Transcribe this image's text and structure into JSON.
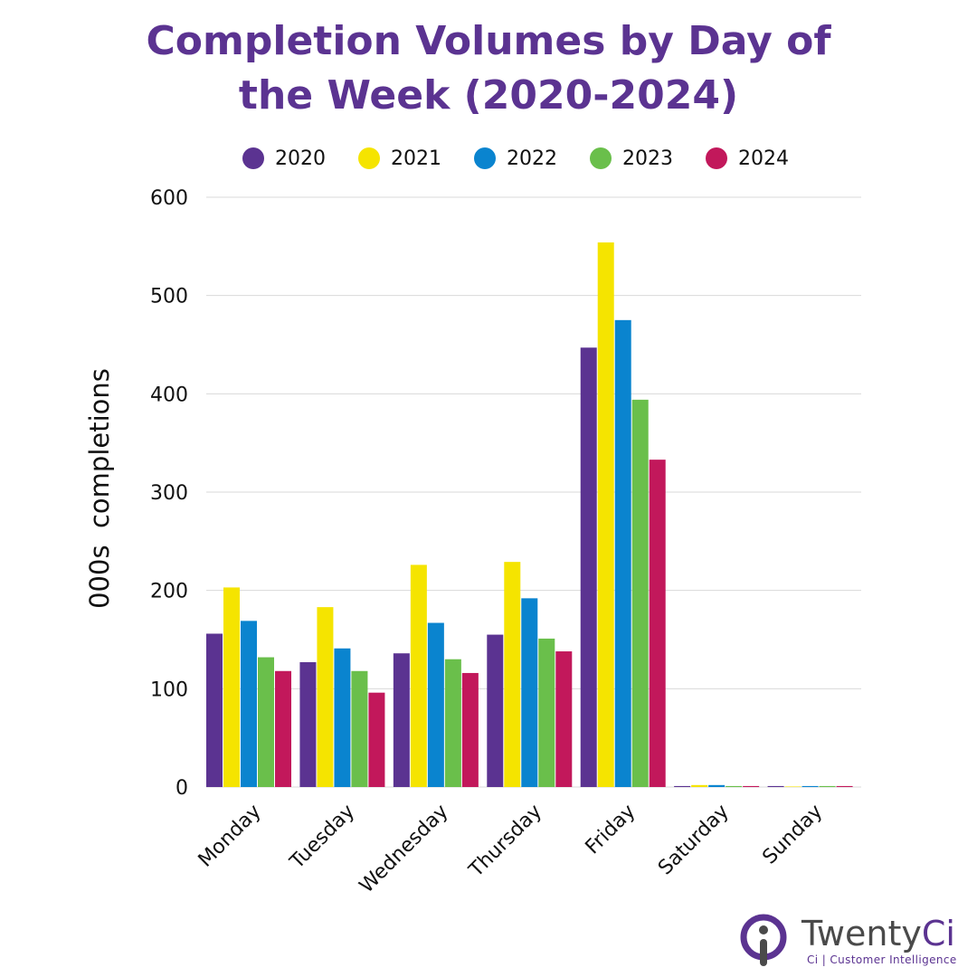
{
  "colors": {
    "title": "#5b3391",
    "series": [
      "#5b3391",
      "#f5e400",
      "#0a84cf",
      "#6abf4b",
      "#c2185b"
    ],
    "grid": "#d9d9d9"
  },
  "chart_data": {
    "type": "bar",
    "title_lines": [
      "Completion Volumes by Day of",
      "the Week (2020-2024)"
    ],
    "ylabel": "000s  completions",
    "xlabel": "",
    "categories": [
      "Monday",
      "Tuesday",
      "Wednesday",
      "Thursday",
      "Friday",
      "Saturday",
      "Sunday"
    ],
    "ylim": [
      0,
      600
    ],
    "yticks": [
      0,
      100,
      200,
      300,
      400,
      500,
      600
    ],
    "grid": true,
    "legend_position": "top",
    "series": [
      {
        "name": "2020",
        "values": [
          156,
          127,
          136,
          155,
          447,
          1,
          1
        ]
      },
      {
        "name": "2021",
        "values": [
          203,
          183,
          226,
          229,
          554,
          2,
          0.5
        ]
      },
      {
        "name": "2022",
        "values": [
          169,
          141,
          167,
          192,
          475,
          2,
          1
        ]
      },
      {
        "name": "2023",
        "values": [
          132,
          118,
          130,
          151,
          394,
          1,
          1
        ]
      },
      {
        "name": "2024",
        "values": [
          118,
          96,
          116,
          138,
          333,
          1,
          1
        ]
      }
    ]
  },
  "brand": {
    "name_part1": "Twenty",
    "name_part2": "Ci",
    "tagline": "Ci | Customer Intelligence"
  }
}
